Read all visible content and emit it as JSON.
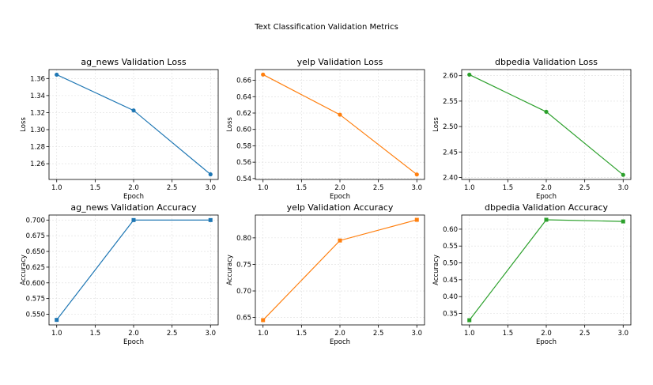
{
  "figure": {
    "title": "Text Classification Validation Metrics"
  },
  "chart_data": [
    {
      "type": "line",
      "title": "ag_news Validation Loss",
      "xlabel": "Epoch",
      "ylabel": "Loss",
      "color": "#1f77b4",
      "marker": "circle",
      "x": [
        1.0,
        2.0,
        3.0
      ],
      "y": [
        1.3645,
        1.3225,
        1.2475
      ],
      "xlim": [
        0.9,
        3.1
      ],
      "ylim": [
        1.2415,
        1.3705
      ],
      "xticks": [
        1.0,
        1.5,
        2.0,
        2.5,
        3.0
      ],
      "xtick_labels": [
        "1.0",
        "1.5",
        "2.0",
        "2.5",
        "3.0"
      ],
      "yticks": [
        1.26,
        1.28,
        1.3,
        1.32,
        1.34,
        1.36
      ],
      "ytick_labels": [
        "1.26",
        "1.28",
        "1.30",
        "1.32",
        "1.34",
        "1.36"
      ],
      "grid": true
    },
    {
      "type": "line",
      "title": "yelp Validation Loss",
      "xlabel": "Epoch",
      "ylabel": "Loss",
      "color": "#ff7f0e",
      "marker": "circle",
      "x": [
        1.0,
        2.0,
        3.0
      ],
      "y": [
        0.667,
        0.618,
        0.545
      ],
      "xlim": [
        0.9,
        3.1
      ],
      "ylim": [
        0.5389,
        0.6731
      ],
      "xticks": [
        1.0,
        1.5,
        2.0,
        2.5,
        3.0
      ],
      "xtick_labels": [
        "1.0",
        "1.5",
        "2.0",
        "2.5",
        "3.0"
      ],
      "yticks": [
        0.54,
        0.56,
        0.58,
        0.6,
        0.62,
        0.64,
        0.66
      ],
      "ytick_labels": [
        "0.54",
        "0.56",
        "0.58",
        "0.60",
        "0.62",
        "0.64",
        "0.66"
      ],
      "grid": true
    },
    {
      "type": "line",
      "title": "dbpedia Validation Loss",
      "xlabel": "Epoch",
      "ylabel": "Loss",
      "color": "#2ca02c",
      "marker": "circle",
      "x": [
        1.0,
        2.0,
        3.0
      ],
      "y": [
        2.602,
        2.529,
        2.405
      ],
      "xlim": [
        0.9,
        3.1
      ],
      "ylim": [
        2.396,
        2.612
      ],
      "xticks": [
        1.0,
        1.5,
        2.0,
        2.5,
        3.0
      ],
      "xtick_labels": [
        "1.0",
        "1.5",
        "2.0",
        "2.5",
        "3.0"
      ],
      "yticks": [
        2.4,
        2.45,
        2.5,
        2.55,
        2.6
      ],
      "ytick_labels": [
        "2.40",
        "2.45",
        "2.50",
        "2.55",
        "2.60"
      ],
      "grid": true
    },
    {
      "type": "line",
      "title": "ag_news Validation Accuracy",
      "xlabel": "Epoch",
      "ylabel": "Accuracy",
      "color": "#1f77b4",
      "marker": "square",
      "x": [
        1.0,
        2.0,
        3.0
      ],
      "y": [
        0.541,
        0.7,
        0.7
      ],
      "xlim": [
        0.9,
        3.1
      ],
      "ylim": [
        0.533,
        0.708
      ],
      "xticks": [
        1.0,
        1.5,
        2.0,
        2.5,
        3.0
      ],
      "xtick_labels": [
        "1.0",
        "1.5",
        "2.0",
        "2.5",
        "3.0"
      ],
      "yticks": [
        0.55,
        0.575,
        0.6,
        0.625,
        0.65,
        0.675,
        0.7
      ],
      "ytick_labels": [
        "0.550",
        "0.575",
        "0.600",
        "0.625",
        "0.650",
        "0.675",
        "0.700"
      ],
      "grid": true
    },
    {
      "type": "line",
      "title": "yelp Validation Accuracy",
      "xlabel": "Epoch",
      "ylabel": "Accuracy",
      "color": "#ff7f0e",
      "marker": "square",
      "x": [
        1.0,
        2.0,
        3.0
      ],
      "y": [
        0.645,
        0.795,
        0.834
      ],
      "xlim": [
        0.9,
        3.1
      ],
      "ylim": [
        0.636,
        0.843
      ],
      "xticks": [
        1.0,
        1.5,
        2.0,
        2.5,
        3.0
      ],
      "xtick_labels": [
        "1.0",
        "1.5",
        "2.0",
        "2.5",
        "3.0"
      ],
      "yticks": [
        0.65,
        0.7,
        0.75,
        0.8
      ],
      "ytick_labels": [
        "0.65",
        "0.70",
        "0.75",
        "0.80"
      ],
      "grid": true
    },
    {
      "type": "line",
      "title": "dbpedia Validation Accuracy",
      "xlabel": "Epoch",
      "ylabel": "Accuracy",
      "color": "#2ca02c",
      "marker": "square",
      "x": [
        1.0,
        2.0,
        3.0
      ],
      "y": [
        0.33,
        0.628,
        0.623
      ],
      "xlim": [
        0.9,
        3.1
      ],
      "ylim": [
        0.316,
        0.642
      ],
      "xticks": [
        1.0,
        1.5,
        2.0,
        2.5,
        3.0
      ],
      "xtick_labels": [
        "1.0",
        "1.5",
        "2.0",
        "2.5",
        "3.0"
      ],
      "yticks": [
        0.35,
        0.4,
        0.45,
        0.5,
        0.55,
        0.6
      ],
      "ytick_labels": [
        "0.35",
        "0.40",
        "0.45",
        "0.50",
        "0.55",
        "0.60"
      ],
      "grid": true
    }
  ]
}
